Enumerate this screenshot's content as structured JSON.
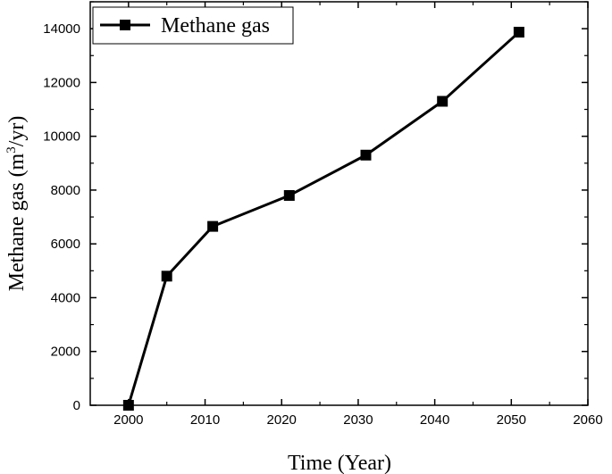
{
  "chart_data": {
    "type": "line",
    "title": "",
    "xlabel": "Time (Year)",
    "ylabel_prefix": "Methane gas (m",
    "ylabel_sup": "3",
    "ylabel_suffix": "/yr)",
    "xlim": [
      1995,
      2060
    ],
    "ylim": [
      0,
      15000
    ],
    "xticks": [
      2000,
      2010,
      2020,
      2030,
      2040,
      2050,
      2060
    ],
    "yticks": [
      0,
      2000,
      4000,
      6000,
      8000,
      10000,
      12000,
      14000
    ],
    "grid": false,
    "legend_position": "top-left",
    "series": [
      {
        "name": "Methane gas",
        "color": "#000000",
        "marker": "square",
        "x": [
          2000,
          2005,
          2011,
          2021,
          2031,
          2041,
          2051
        ],
        "y": [
          0,
          4800,
          6650,
          7800,
          9300,
          11300,
          13870
        ]
      }
    ]
  }
}
